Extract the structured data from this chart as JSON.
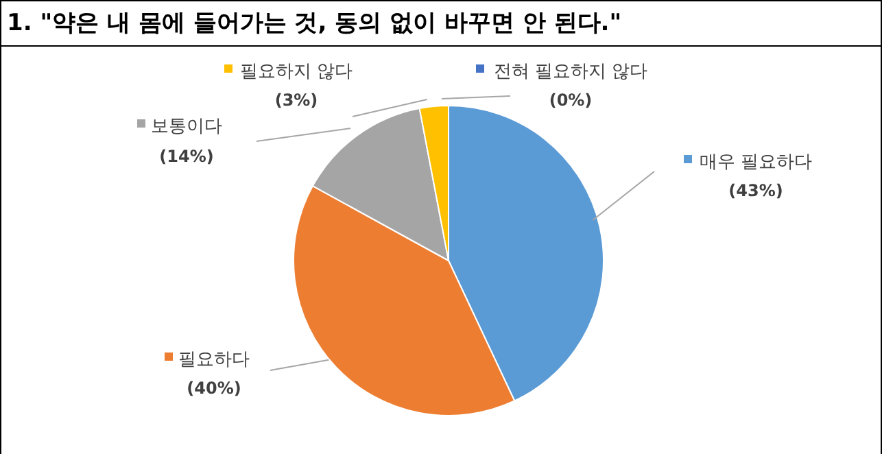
{
  "chart_data": {
    "type": "pie",
    "title": "1. \"약은 내 몸에 들어가는 것, 동의 없이 바꾸면 안 된다.\"",
    "categories": [
      "매우 필요하다",
      "필요하다",
      "보통이다",
      "필요하지 않다",
      "전혀 필요하지 않다"
    ],
    "values": [
      43,
      40,
      14,
      3,
      0
    ],
    "value_labels": [
      "(43%)",
      "(40%)",
      "(14%)",
      "(3%)",
      "(0%)"
    ],
    "colors": [
      "#5b9bd5",
      "#ed7d31",
      "#a5a5a5",
      "#ffc000",
      "#4472c4"
    ],
    "legend": "top"
  }
}
